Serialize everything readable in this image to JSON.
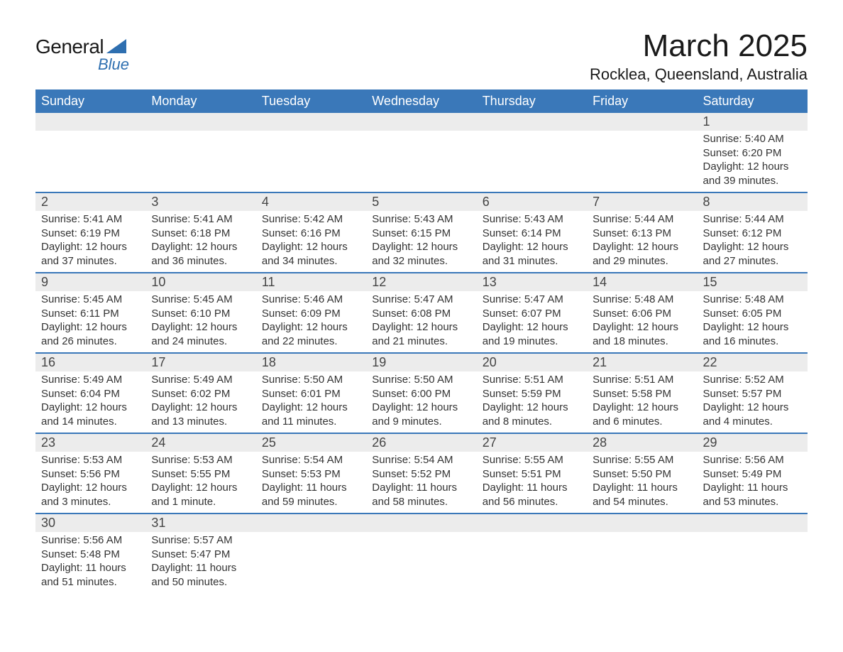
{
  "logo": {
    "general": "General",
    "blue": "Blue",
    "triangle_color": "#2e6fb0"
  },
  "title": "March 2025",
  "location": "Rocklea, Queensland, Australia",
  "header_bg": "#3a78b9",
  "header_fg": "#ffffff",
  "daynum_bg": "#ececec",
  "row_divider_color": "#3a78b9",
  "text_color": "#333333",
  "font_family": "Arial, Helvetica, sans-serif",
  "weekdays": [
    "Sunday",
    "Monday",
    "Tuesday",
    "Wednesday",
    "Thursday",
    "Friday",
    "Saturday"
  ],
  "weeks": [
    [
      {
        "empty": true
      },
      {
        "empty": true
      },
      {
        "empty": true
      },
      {
        "empty": true
      },
      {
        "empty": true
      },
      {
        "empty": true
      },
      {
        "day": "1",
        "sunrise": "Sunrise: 5:40 AM",
        "sunset": "Sunset: 6:20 PM",
        "daylight1": "Daylight: 12 hours",
        "daylight2": "and 39 minutes."
      }
    ],
    [
      {
        "day": "2",
        "sunrise": "Sunrise: 5:41 AM",
        "sunset": "Sunset: 6:19 PM",
        "daylight1": "Daylight: 12 hours",
        "daylight2": "and 37 minutes."
      },
      {
        "day": "3",
        "sunrise": "Sunrise: 5:41 AM",
        "sunset": "Sunset: 6:18 PM",
        "daylight1": "Daylight: 12 hours",
        "daylight2": "and 36 minutes."
      },
      {
        "day": "4",
        "sunrise": "Sunrise: 5:42 AM",
        "sunset": "Sunset: 6:16 PM",
        "daylight1": "Daylight: 12 hours",
        "daylight2": "and 34 minutes."
      },
      {
        "day": "5",
        "sunrise": "Sunrise: 5:43 AM",
        "sunset": "Sunset: 6:15 PM",
        "daylight1": "Daylight: 12 hours",
        "daylight2": "and 32 minutes."
      },
      {
        "day": "6",
        "sunrise": "Sunrise: 5:43 AM",
        "sunset": "Sunset: 6:14 PM",
        "daylight1": "Daylight: 12 hours",
        "daylight2": "and 31 minutes."
      },
      {
        "day": "7",
        "sunrise": "Sunrise: 5:44 AM",
        "sunset": "Sunset: 6:13 PM",
        "daylight1": "Daylight: 12 hours",
        "daylight2": "and 29 minutes."
      },
      {
        "day": "8",
        "sunrise": "Sunrise: 5:44 AM",
        "sunset": "Sunset: 6:12 PM",
        "daylight1": "Daylight: 12 hours",
        "daylight2": "and 27 minutes."
      }
    ],
    [
      {
        "day": "9",
        "sunrise": "Sunrise: 5:45 AM",
        "sunset": "Sunset: 6:11 PM",
        "daylight1": "Daylight: 12 hours",
        "daylight2": "and 26 minutes."
      },
      {
        "day": "10",
        "sunrise": "Sunrise: 5:45 AM",
        "sunset": "Sunset: 6:10 PM",
        "daylight1": "Daylight: 12 hours",
        "daylight2": "and 24 minutes."
      },
      {
        "day": "11",
        "sunrise": "Sunrise: 5:46 AM",
        "sunset": "Sunset: 6:09 PM",
        "daylight1": "Daylight: 12 hours",
        "daylight2": "and 22 minutes."
      },
      {
        "day": "12",
        "sunrise": "Sunrise: 5:47 AM",
        "sunset": "Sunset: 6:08 PM",
        "daylight1": "Daylight: 12 hours",
        "daylight2": "and 21 minutes."
      },
      {
        "day": "13",
        "sunrise": "Sunrise: 5:47 AM",
        "sunset": "Sunset: 6:07 PM",
        "daylight1": "Daylight: 12 hours",
        "daylight2": "and 19 minutes."
      },
      {
        "day": "14",
        "sunrise": "Sunrise: 5:48 AM",
        "sunset": "Sunset: 6:06 PM",
        "daylight1": "Daylight: 12 hours",
        "daylight2": "and 18 minutes."
      },
      {
        "day": "15",
        "sunrise": "Sunrise: 5:48 AM",
        "sunset": "Sunset: 6:05 PM",
        "daylight1": "Daylight: 12 hours",
        "daylight2": "and 16 minutes."
      }
    ],
    [
      {
        "day": "16",
        "sunrise": "Sunrise: 5:49 AM",
        "sunset": "Sunset: 6:04 PM",
        "daylight1": "Daylight: 12 hours",
        "daylight2": "and 14 minutes."
      },
      {
        "day": "17",
        "sunrise": "Sunrise: 5:49 AM",
        "sunset": "Sunset: 6:02 PM",
        "daylight1": "Daylight: 12 hours",
        "daylight2": "and 13 minutes."
      },
      {
        "day": "18",
        "sunrise": "Sunrise: 5:50 AM",
        "sunset": "Sunset: 6:01 PM",
        "daylight1": "Daylight: 12 hours",
        "daylight2": "and 11 minutes."
      },
      {
        "day": "19",
        "sunrise": "Sunrise: 5:50 AM",
        "sunset": "Sunset: 6:00 PM",
        "daylight1": "Daylight: 12 hours",
        "daylight2": "and 9 minutes."
      },
      {
        "day": "20",
        "sunrise": "Sunrise: 5:51 AM",
        "sunset": "Sunset: 5:59 PM",
        "daylight1": "Daylight: 12 hours",
        "daylight2": "and 8 minutes."
      },
      {
        "day": "21",
        "sunrise": "Sunrise: 5:51 AM",
        "sunset": "Sunset: 5:58 PM",
        "daylight1": "Daylight: 12 hours",
        "daylight2": "and 6 minutes."
      },
      {
        "day": "22",
        "sunrise": "Sunrise: 5:52 AM",
        "sunset": "Sunset: 5:57 PM",
        "daylight1": "Daylight: 12 hours",
        "daylight2": "and 4 minutes."
      }
    ],
    [
      {
        "day": "23",
        "sunrise": "Sunrise: 5:53 AM",
        "sunset": "Sunset: 5:56 PM",
        "daylight1": "Daylight: 12 hours",
        "daylight2": "and 3 minutes."
      },
      {
        "day": "24",
        "sunrise": "Sunrise: 5:53 AM",
        "sunset": "Sunset: 5:55 PM",
        "daylight1": "Daylight: 12 hours",
        "daylight2": "and 1 minute."
      },
      {
        "day": "25",
        "sunrise": "Sunrise: 5:54 AM",
        "sunset": "Sunset: 5:53 PM",
        "daylight1": "Daylight: 11 hours",
        "daylight2": "and 59 minutes."
      },
      {
        "day": "26",
        "sunrise": "Sunrise: 5:54 AM",
        "sunset": "Sunset: 5:52 PM",
        "daylight1": "Daylight: 11 hours",
        "daylight2": "and 58 minutes."
      },
      {
        "day": "27",
        "sunrise": "Sunrise: 5:55 AM",
        "sunset": "Sunset: 5:51 PM",
        "daylight1": "Daylight: 11 hours",
        "daylight2": "and 56 minutes."
      },
      {
        "day": "28",
        "sunrise": "Sunrise: 5:55 AM",
        "sunset": "Sunset: 5:50 PM",
        "daylight1": "Daylight: 11 hours",
        "daylight2": "and 54 minutes."
      },
      {
        "day": "29",
        "sunrise": "Sunrise: 5:56 AM",
        "sunset": "Sunset: 5:49 PM",
        "daylight1": "Daylight: 11 hours",
        "daylight2": "and 53 minutes."
      }
    ],
    [
      {
        "day": "30",
        "sunrise": "Sunrise: 5:56 AM",
        "sunset": "Sunset: 5:48 PM",
        "daylight1": "Daylight: 11 hours",
        "daylight2": "and 51 minutes."
      },
      {
        "day": "31",
        "sunrise": "Sunrise: 5:57 AM",
        "sunset": "Sunset: 5:47 PM",
        "daylight1": "Daylight: 11 hours",
        "daylight2": "and 50 minutes."
      },
      {
        "empty": true
      },
      {
        "empty": true
      },
      {
        "empty": true
      },
      {
        "empty": true
      },
      {
        "empty": true
      }
    ]
  ]
}
